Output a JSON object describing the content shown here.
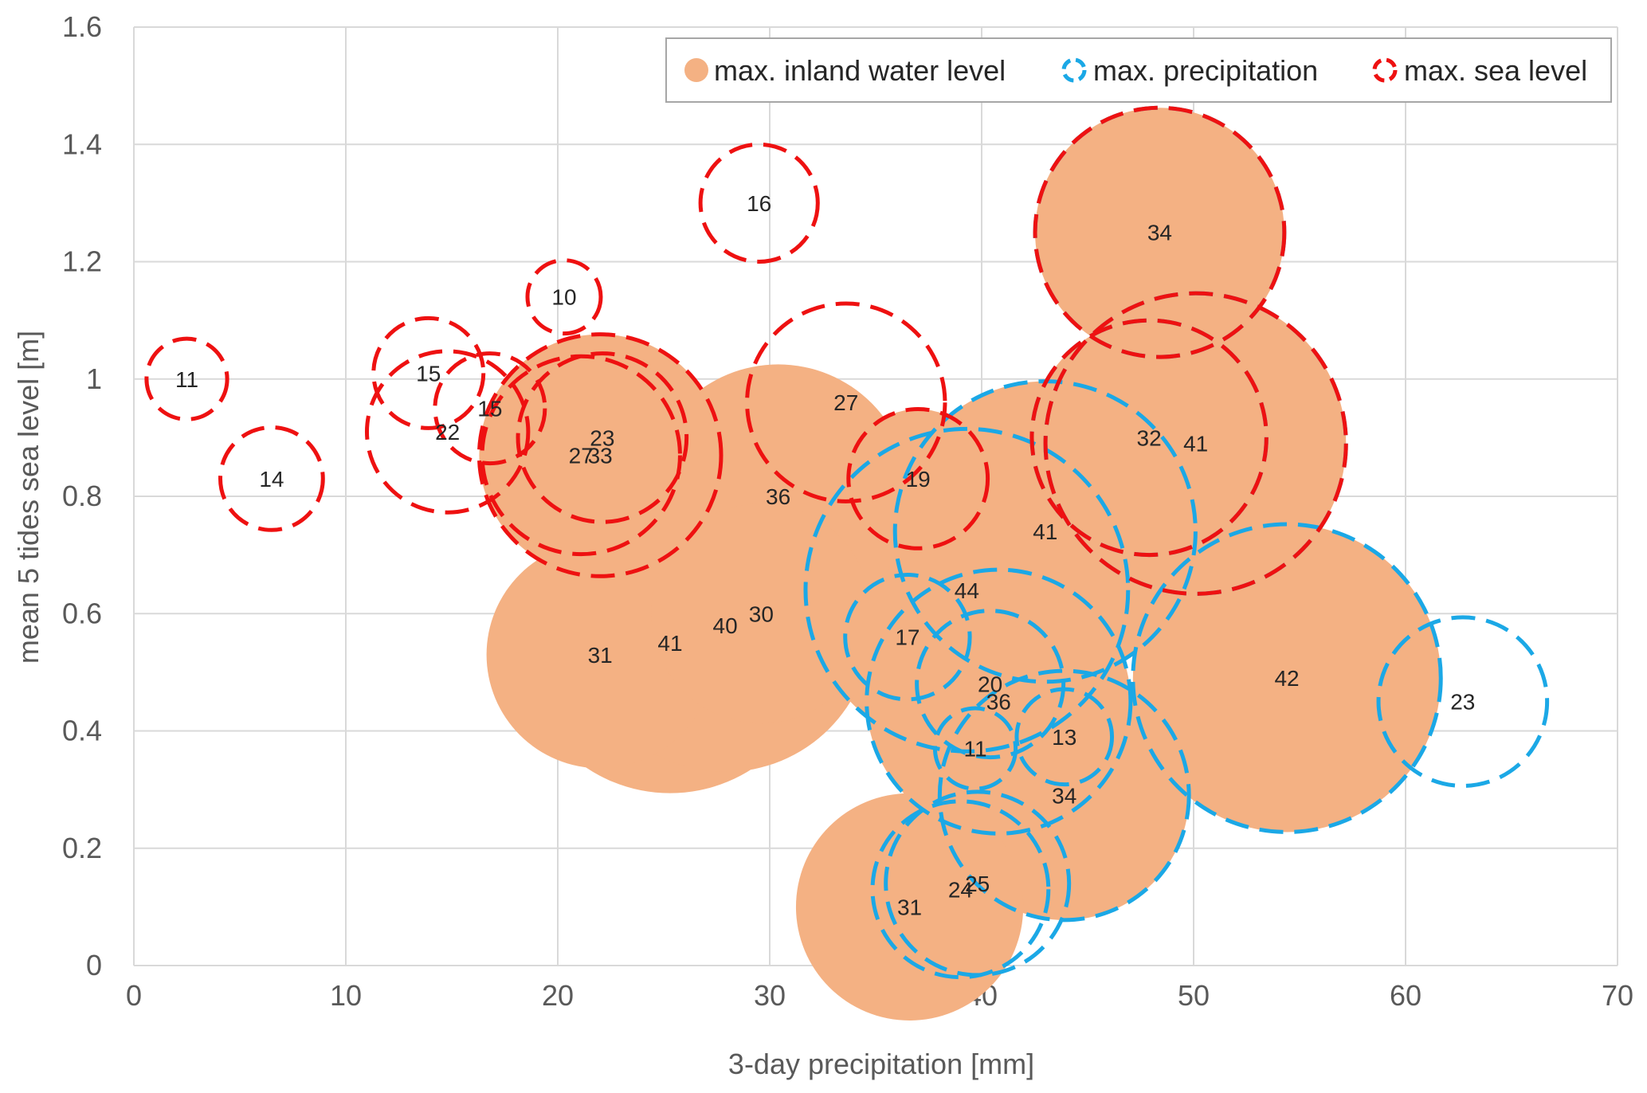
{
  "chart_data": {
    "type": "bubble",
    "xlabel": "3-day precipitation [mm]",
    "ylabel": "mean 5 tides sea level [m]",
    "xlim": [
      0,
      70
    ],
    "ylim": [
      0,
      1.6
    ],
    "xticks": [
      0,
      10,
      20,
      30,
      40,
      50,
      60,
      70
    ],
    "yticks": [
      0,
      0.2,
      0.4,
      0.6,
      0.8,
      1,
      1.2,
      1.4,
      1.6
    ],
    "ytick_labels": [
      "0",
      "0.2",
      "0.4",
      "0.6",
      "0.8",
      "1",
      "1.2",
      "1.4",
      "1.6"
    ],
    "grid": true,
    "legend_position": "top-right",
    "colors": {
      "inland": "#f4b183",
      "precipitation": "#1ba8e6",
      "sea": "#ee1111"
    },
    "series": [
      {
        "name": "max. inland water level",
        "style": "filled",
        "points": [
          {
            "x": 22.0,
            "y": 0.53,
            "size": 31
          },
          {
            "x": 25.3,
            "y": 0.55,
            "size": 41
          },
          {
            "x": 27.9,
            "y": 0.58,
            "size": 40
          },
          {
            "x": 29.6,
            "y": 0.6,
            "size": 30
          },
          {
            "x": 30.4,
            "y": 0.8,
            "size": 36
          },
          {
            "x": 21.1,
            "y": 0.87,
            "size": 27
          },
          {
            "x": 22.0,
            "y": 0.87,
            "size": 33
          },
          {
            "x": 22.1,
            "y": 0.9,
            "size": 23
          },
          {
            "x": 37.0,
            "y": 0.83,
            "size": 19
          },
          {
            "x": 43.0,
            "y": 0.74,
            "size": 41
          },
          {
            "x": 39.3,
            "y": 0.64,
            "size": 44
          },
          {
            "x": 36.5,
            "y": 0.56,
            "size": 17
          },
          {
            "x": 40.4,
            "y": 0.48,
            "size": 20
          },
          {
            "x": 40.8,
            "y": 0.45,
            "size": 36
          },
          {
            "x": 39.7,
            "y": 0.37,
            "size": 11
          },
          {
            "x": 43.9,
            "y": 0.39,
            "size": 13
          },
          {
            "x": 43.9,
            "y": 0.29,
            "size": 34
          },
          {
            "x": 36.6,
            "y": 0.1,
            "size": 31
          },
          {
            "x": 47.9,
            "y": 0.9,
            "size": 32
          },
          {
            "x": 50.1,
            "y": 0.89,
            "size": 41
          },
          {
            "x": 48.4,
            "y": 1.25,
            "size": 34
          },
          {
            "x": 54.4,
            "y": 0.49,
            "size": 42
          }
        ]
      },
      {
        "name": "max. precipitation",
        "style": "dashed",
        "points": [
          {
            "x": 48.4,
            "y": 1.25,
            "size": 34
          },
          {
            "x": 50.1,
            "y": 0.89,
            "size": 41
          },
          {
            "x": 47.9,
            "y": 0.9,
            "size": 32
          },
          {
            "x": 43.0,
            "y": 0.74,
            "size": 41
          },
          {
            "x": 39.3,
            "y": 0.64,
            "size": 44
          },
          {
            "x": 36.5,
            "y": 0.56,
            "size": 17
          },
          {
            "x": 40.4,
            "y": 0.48,
            "size": 20
          },
          {
            "x": 40.8,
            "y": 0.45,
            "size": 36
          },
          {
            "x": 39.7,
            "y": 0.37,
            "size": 11
          },
          {
            "x": 43.9,
            "y": 0.39,
            "size": 13
          },
          {
            "x": 43.9,
            "y": 0.29,
            "size": 34
          },
          {
            "x": 54.4,
            "y": 0.49,
            "size": 42
          },
          {
            "x": 62.7,
            "y": 0.45,
            "size": 23
          },
          {
            "x": 39.0,
            "y": 0.13,
            "size": 24
          },
          {
            "x": 39.8,
            "y": 0.14,
            "size": 25
          }
        ]
      },
      {
        "name": "max. sea level",
        "style": "dashed",
        "points": [
          {
            "x": 2.5,
            "y": 1.0,
            "size": 11
          },
          {
            "x": 6.5,
            "y": 0.83,
            "size": 14
          },
          {
            "x": 13.9,
            "y": 1.01,
            "size": 15
          },
          {
            "x": 14.8,
            "y": 0.91,
            "size": 22
          },
          {
            "x": 16.8,
            "y": 0.95,
            "size": 15
          },
          {
            "x": 20.3,
            "y": 1.14,
            "size": 10
          },
          {
            "x": 29.5,
            "y": 1.3,
            "size": 16
          },
          {
            "x": 33.6,
            "y": 0.96,
            "size": 27
          },
          {
            "x": 21.1,
            "y": 0.87,
            "size": 27
          },
          {
            "x": 22.0,
            "y": 0.87,
            "size": 33
          },
          {
            "x": 22.1,
            "y": 0.9,
            "size": 23
          },
          {
            "x": 37.0,
            "y": 0.83,
            "size": 19
          },
          {
            "x": 47.9,
            "y": 0.9,
            "size": 32
          },
          {
            "x": 50.1,
            "y": 0.89,
            "size": 41
          },
          {
            "x": 48.4,
            "y": 1.25,
            "size": 34
          }
        ]
      }
    ]
  }
}
